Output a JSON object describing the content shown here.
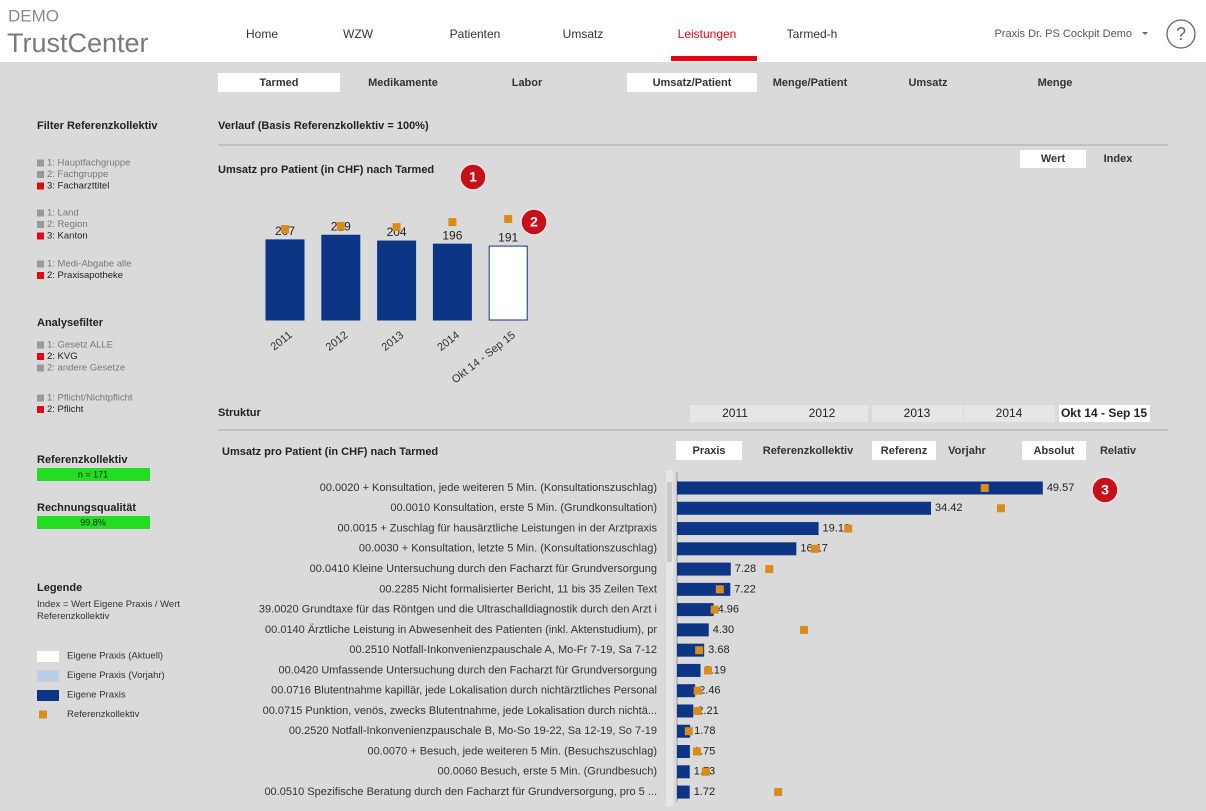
{
  "header": {
    "logo_top": "DEMO",
    "logo_bottom": "TrustCenter",
    "nav": [
      {
        "label": "Home",
        "active": false
      },
      {
        "label": "WZW",
        "active": false
      },
      {
        "label": "Patienten",
        "active": false
      },
      {
        "label": "Umsatz",
        "active": false
      },
      {
        "label": "Leistungen",
        "active": true
      },
      {
        "label": "Tarmed-h",
        "active": false
      }
    ],
    "user": "Praxis Dr. PS Cockpit Demo",
    "help": "?"
  },
  "tabs_left": [
    {
      "label": "Tarmed",
      "active": true
    },
    {
      "label": "Medikamente",
      "active": false
    },
    {
      "label": "Labor",
      "active": false
    }
  ],
  "tabs_right": [
    {
      "label": "Umsatz/Patient",
      "active": true
    },
    {
      "label": "Menge/Patient",
      "active": false
    },
    {
      "label": "Umsatz",
      "active": false
    },
    {
      "label": "Menge",
      "active": false
    }
  ],
  "sidebar": {
    "filter_title": "Filter Referenzkollektiv",
    "filter_groups": [
      [
        {
          "label": "1: Hauptfachgruppe",
          "active": false
        },
        {
          "label": "2: Fachgruppe",
          "active": false
        },
        {
          "label": "3: Facharzttitel",
          "active": true
        }
      ],
      [
        {
          "label": "1: Land",
          "active": false
        },
        {
          "label": "2: Region",
          "active": false
        },
        {
          "label": "3: Kanton",
          "active": true
        }
      ],
      [
        {
          "label": "1: Medi-Abgabe alle",
          "active": false
        },
        {
          "label": "2: Praxisapotheke",
          "active": true
        }
      ]
    ],
    "analysis_title": "Analysefilter",
    "analysis_groups": [
      [
        {
          "label": "1: Gesetz ALLE",
          "active": false
        },
        {
          "label": "2: KVG",
          "active": true
        },
        {
          "label": "2: andere Gesetze",
          "active": false
        }
      ],
      [
        {
          "label": "1: Pflicht/Nichtpflicht",
          "active": false
        },
        {
          "label": "2: Pflicht",
          "active": true
        }
      ]
    ],
    "ref_title": "Referenzkollektiv",
    "ref_value": "n = 171",
    "quality_title": "Rechnungsqualität",
    "quality_value": "99.8%",
    "legend_title": "Legende",
    "legend_note": "Index = Wert Eigene Praxis / Wert Referenzkollektiv",
    "legend": [
      {
        "label": "Eigene Praxis (Aktuell)",
        "color": "#ffffff"
      },
      {
        "label": "Eigene Praxis (Vorjahr)",
        "color": "#b8cfe6"
      },
      {
        "label": "Eigene Praxis",
        "color": "#0c3585"
      },
      {
        "label": "Referenzkollektiv",
        "color": "#d98c1a",
        "small": true
      }
    ]
  },
  "trend": {
    "type": "bar",
    "heading": "Verlauf (Basis Referenzkollektiv = 100%)",
    "title": "Umsatz pro Patient (in CHF) nach Tarmed",
    "toggle": [
      {
        "label": "Wert",
        "active": true
      },
      {
        "label": "Index",
        "active": false
      }
    ],
    "categories": [
      "2011",
      "2012",
      "2013",
      "2014",
      "Okt 14 - Sep 15"
    ],
    "values": [
      207,
      219,
      204,
      196,
      191
    ],
    "reference": [
      235,
      243,
      240,
      253,
      261
    ],
    "colors": [
      "#0c3585",
      "#0c3585",
      "#0c3585",
      "#0c3585",
      "#ffffff"
    ],
    "ref_color": "#d98c1a"
  },
  "badges": [
    "1",
    "2",
    "3"
  ],
  "structure": {
    "type": "bar",
    "heading": "Struktur",
    "title": "Umsatz pro Patient (in CHF) nach Tarmed",
    "periods": [
      {
        "label": "2011",
        "active": false
      },
      {
        "label": "2012",
        "active": false
      },
      {
        "label": "2013",
        "active": false
      },
      {
        "label": "2014",
        "active": false
      },
      {
        "label": "Okt 14 - Sep 15",
        "active": true
      }
    ],
    "toggles": [
      [
        {
          "label": "Praxis",
          "active": true
        },
        {
          "label": "Referenzkollektiv",
          "active": false
        }
      ],
      [
        {
          "label": "Referenz",
          "active": true
        },
        {
          "label": "Vorjahr",
          "active": false
        }
      ],
      [
        {
          "label": "Absolut",
          "active": true
        },
        {
          "label": "Relativ",
          "active": false
        }
      ]
    ],
    "color": "#0c3585",
    "ref_color": "#d98c1a",
    "rows": [
      {
        "label": "00.0020 + Konsultation, jede weiteren 5 Min. (Konsultationszuschlag)",
        "value": 49.57,
        "value_label": "49.57",
        "reference": 41.7
      },
      {
        "label": "00.0010 Konsultation, erste 5 Min. (Grundkonsultation)",
        "value": 34.42,
        "value_label": "34.42",
        "reference": 43.9
      },
      {
        "label": "00.0015 + Zuschlag für hausärztliche Leistungen in der Arztpraxis",
        "value": 19.18,
        "value_label": "19.18",
        "reference": 23.2
      },
      {
        "label": "00.0030 + Konsultation, letzte 5 Min. (Konsultationszuschlag)",
        "value": 16.17,
        "value_label": "16.17",
        "reference": 18.7
      },
      {
        "label": "00.0410 Kleine Untersuchung durch den Facharzt für Grundversorgung",
        "value": 7.28,
        "value_label": "7.28",
        "reference": 12.5
      },
      {
        "label": "00.2285 Nicht formalisierter Bericht, 11 bis 35 Zeilen Text",
        "value": 7.22,
        "value_label": "7.22",
        "reference": 5.8
      },
      {
        "label": "39.0020 Grundtaxe für das Röntgen und die Ultraschalldiagnostik durch den Arzt i",
        "value": 4.96,
        "value_label": "4.96",
        "reference": 5.1
      },
      {
        "label": "00.0140 Ärztliche Leistung in Abwesenheit des Patienten (inkl. Aktenstudium), pr",
        "value": 4.3,
        "value_label": "4.30",
        "reference": 17.2
      },
      {
        "label": "00.2510 Notfall-Inkonvenienzpauschale A, Mo-Fr 7-19, Sa 7-12",
        "value": 3.68,
        "value_label": "3.68",
        "reference": 3.0
      },
      {
        "label": "00.0420 Umfassende Untersuchung durch den Facharzt für Grundversorgung",
        "value": 3.19,
        "value_label": "3.19",
        "reference": 4.2
      },
      {
        "label": "00.0716 Blutentnahme kapillär, jede Lokalisation durch nichtärztliches Personal",
        "value": 2.46,
        "value_label": "2.46",
        "reference": 2.8
      },
      {
        "label": "00.0715 Punktion, venös, zwecks Blutentnahme, jede Lokalisation durch nichtä...",
        "value": 2.21,
        "value_label": "2.21",
        "reference": 2.8
      },
      {
        "label": "00.2520 Notfall-Inkonvenienzpauschale B, Mo-So 19-22, Sa 12-19, So 7-19",
        "value": 1.78,
        "value_label": "1.78",
        "reference": 1.6
      },
      {
        "label": "00.0070 + Besuch, jede weiteren 5 Min. (Besuchszuschlag)",
        "value": 1.75,
        "value_label": "1.75",
        "reference": 2.7
      },
      {
        "label": "00.0060 Besuch, erste 5 Min. (Grundbesuch)",
        "value": 1.73,
        "value_label": "1.73",
        "reference": 3.9
      },
      {
        "label": "00.0510 Spezifische Beratung durch den Facharzt für Grundversorgung, pro 5 ...",
        "value": 1.72,
        "value_label": "1.72",
        "reference": 13.7
      }
    ]
  }
}
